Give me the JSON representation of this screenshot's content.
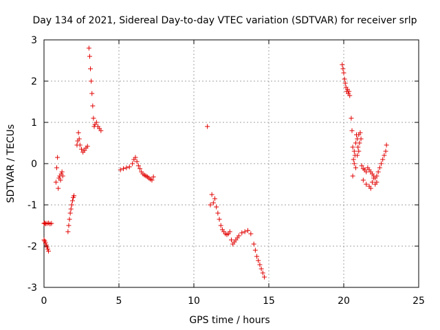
{
  "chart_data": {
    "type": "scatter",
    "title": "Day 134 of 2021, Sidereal Day-to-day VTEC variation (SDTVAR) for receiver srlp",
    "xlabel": "GPS time / hours",
    "ylabel": "SDTVAR / TECUs",
    "xlim": [
      0,
      25
    ],
    "ylim": [
      -3,
      3
    ],
    "xticks": [
      0,
      5,
      10,
      15,
      20,
      25
    ],
    "yticks": [
      -3,
      -2,
      -1,
      0,
      1,
      2,
      3
    ],
    "xtick_labels": [
      "0",
      "5",
      "10",
      "15",
      "20",
      "25"
    ],
    "ytick_labels": [
      "-3",
      "-2",
      "-1",
      "0",
      "1",
      "2",
      "3"
    ],
    "grid": true,
    "marker": "+",
    "series": [
      {
        "name": "SDTVAR",
        "color": "#e00000",
        "x": [
          0.0,
          0.05,
          0.1,
          0.2,
          0.3,
          0.4,
          0.5,
          0.0,
          0.05,
          0.1,
          0.15,
          0.2,
          0.25,
          0.3,
          0.8,
          0.85,
          0.9,
          0.95,
          1.0,
          1.05,
          1.1,
          1.15,
          1.2,
          1.25,
          1.6,
          1.65,
          1.7,
          1.75,
          1.8,
          1.85,
          1.9,
          1.95,
          2.0,
          2.2,
          2.25,
          2.3,
          2.35,
          2.4,
          2.5,
          2.6,
          2.7,
          2.8,
          2.9,
          3.0,
          3.05,
          3.1,
          3.15,
          3.2,
          3.25,
          3.3,
          3.35,
          3.4,
          3.5,
          3.6,
          3.7,
          3.8,
          5.1,
          5.3,
          5.5,
          5.7,
          5.9,
          6.0,
          6.1,
          6.2,
          6.3,
          6.4,
          6.5,
          6.6,
          6.7,
          6.8,
          6.9,
          7.0,
          7.1,
          7.2,
          7.3,
          10.9,
          11.1,
          11.2,
          11.3,
          11.4,
          11.5,
          11.6,
          11.7,
          11.8,
          11.9,
          12.0,
          12.1,
          12.2,
          12.3,
          12.4,
          12.5,
          12.6,
          12.7,
          12.8,
          12.9,
          13.0,
          13.2,
          13.4,
          13.6,
          13.8,
          14.0,
          14.1,
          14.2,
          14.3,
          14.4,
          14.5,
          14.6,
          14.7,
          19.9,
          19.95,
          20.0,
          20.05,
          20.1,
          20.15,
          20.2,
          20.25,
          20.3,
          20.35,
          20.4,
          20.5,
          20.55,
          20.6,
          20.65,
          20.7,
          20.75,
          20.8,
          20.85,
          20.9,
          20.95,
          21.0,
          21.05,
          21.1,
          21.15,
          21.2,
          21.3,
          21.4,
          21.5,
          21.6,
          21.7,
          21.8,
          21.9,
          22.0,
          22.1,
          22.2,
          22.3,
          22.4,
          22.5,
          22.6,
          22.7,
          22.8,
          22.85,
          20.6,
          20.7,
          20.8,
          20.9,
          21.0,
          21.3,
          21.5,
          21.7,
          21.9,
          22.1,
          21.8,
          22.0,
          22.2
        ],
        "y": [
          -1.45,
          -1.44,
          -1.46,
          -1.45,
          -1.44,
          -1.46,
          -1.45,
          -1.85,
          -1.88,
          -1.92,
          -1.97,
          -2.02,
          -2.07,
          -2.12,
          -0.45,
          -0.1,
          0.15,
          -0.6,
          -0.35,
          -0.3,
          -0.4,
          -0.25,
          -0.2,
          -0.3,
          -1.65,
          -1.5,
          -1.35,
          -1.2,
          -1.1,
          -1.0,
          -0.9,
          -0.82,
          -0.78,
          0.45,
          0.55,
          0.75,
          0.6,
          0.45,
          0.35,
          0.28,
          0.32,
          0.38,
          0.42,
          2.8,
          2.6,
          2.3,
          2.0,
          1.7,
          1.4,
          1.1,
          0.9,
          0.95,
          1.0,
          0.9,
          0.85,
          0.8,
          -0.15,
          -0.12,
          -0.1,
          -0.08,
          0.0,
          0.1,
          0.15,
          0.05,
          -0.05,
          -0.12,
          -0.2,
          -0.25,
          -0.28,
          -0.3,
          -0.32,
          -0.35,
          -0.38,
          -0.4,
          -0.32,
          0.9,
          -1.0,
          -0.75,
          -0.95,
          -0.85,
          -1.05,
          -1.2,
          -1.35,
          -1.5,
          -1.6,
          -1.65,
          -1.7,
          -1.72,
          -1.7,
          -1.65,
          -1.85,
          -1.95,
          -1.9,
          -1.85,
          -1.8,
          -1.75,
          -1.68,
          -1.65,
          -1.62,
          -1.7,
          -1.95,
          -2.1,
          -2.25,
          -2.35,
          -2.45,
          -2.55,
          -2.65,
          -2.75,
          2.4,
          2.3,
          2.2,
          2.05,
          1.95,
          1.85,
          1.75,
          1.8,
          1.7,
          1.75,
          1.65,
          1.1,
          0.8,
          0.4,
          0.1,
          0.3,
          0.2,
          0.5,
          0.7,
          0.6,
          0.4,
          0.7,
          0.5,
          0.75,
          0.6,
          -0.05,
          -0.12,
          -0.15,
          -0.2,
          -0.1,
          -0.15,
          -0.2,
          -0.25,
          -0.3,
          -0.35,
          -0.3,
          -0.2,
          -0.1,
          0.0,
          0.1,
          0.2,
          0.3,
          0.45,
          -0.3,
          0.0,
          -0.1,
          0.2,
          0.3,
          -0.4,
          -0.5,
          -0.55,
          -0.45,
          -0.5,
          -0.6,
          -0.35,
          -0.45
        ]
      }
    ]
  }
}
